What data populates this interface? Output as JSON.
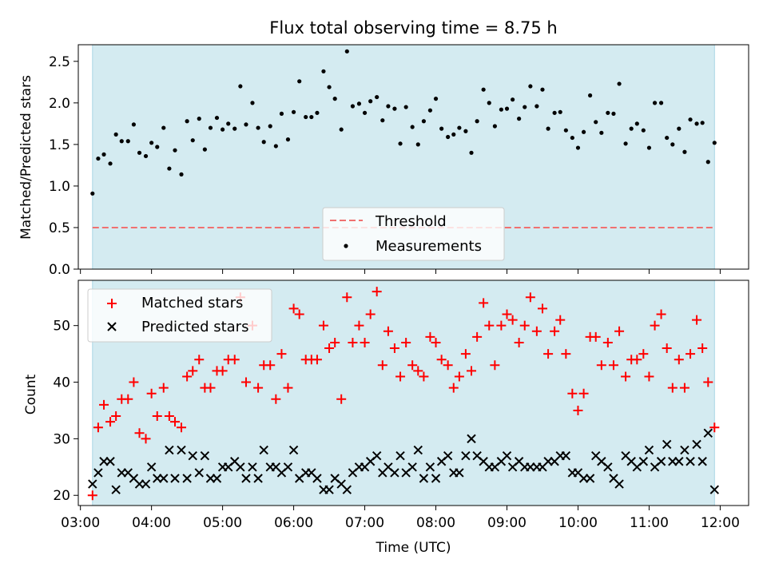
{
  "chart_data": [
    {
      "type": "scatter",
      "title": "Flux total observing time = 8.75 h",
      "ylabel": "Matched/Predicted stars",
      "xlabel": "",
      "ylim": [
        0,
        2.7
      ],
      "yticks": [
        0.0,
        0.5,
        1.0,
        1.5,
        2.0,
        2.5
      ],
      "ytick_labels": [
        "0.0",
        "0.5",
        "1.0",
        "1.5",
        "2.0",
        "2.5"
      ],
      "xlim": [
        2.97,
        12.4
      ],
      "shaded_range": [
        3.17,
        11.92
      ],
      "shade_color": "#d4ebf1",
      "grid": false,
      "legend_position": "bottom-center",
      "threshold": {
        "name": "Threshold",
        "value": 0.5,
        "x_range": [
          3.17,
          11.92
        ],
        "color": "#f07070"
      },
      "series": [
        {
          "name": "Measurements",
          "color": "#000000",
          "x": [
            3.17,
            3.25,
            3.33,
            3.42,
            3.5,
            3.58,
            3.67,
            3.75,
            3.83,
            3.92,
            4.0,
            4.08,
            4.17,
            4.25,
            4.33,
            4.42,
            4.5,
            4.58,
            4.67,
            4.75,
            4.83,
            4.92,
            5.0,
            5.08,
            5.17,
            5.25,
            5.33,
            5.42,
            5.5,
            5.58,
            5.67,
            5.75,
            5.83,
            5.92,
            6.0,
            6.08,
            6.17,
            6.25,
            6.33,
            6.42,
            6.5,
            6.58,
            6.67,
            6.75,
            6.83,
            6.92,
            7.0,
            7.08,
            7.17,
            7.25,
            7.33,
            7.42,
            7.5,
            7.58,
            7.67,
            7.75,
            7.83,
            7.92,
            8.0,
            8.08,
            8.17,
            8.25,
            8.33,
            8.42,
            8.5,
            8.58,
            8.67,
            8.75,
            8.83,
            8.92,
            9.0,
            9.08,
            9.17,
            9.25,
            9.33,
            9.42,
            9.5,
            9.58,
            9.67,
            9.75,
            9.83,
            9.92,
            10.0,
            10.08,
            10.17,
            10.25,
            10.33,
            10.42,
            10.5,
            10.58,
            10.67,
            10.75,
            10.83,
            10.92,
            11.0,
            11.08,
            11.17,
            11.25,
            11.33,
            11.42,
            11.5,
            11.58,
            11.67,
            11.75,
            11.83,
            11.92
          ],
          "y": [
            0.91,
            1.33,
            1.38,
            1.27,
            1.62,
            1.54,
            1.54,
            1.74,
            1.4,
            1.36,
            1.52,
            1.47,
            1.7,
            1.21,
            1.43,
            1.14,
            1.78,
            1.55,
            1.81,
            1.44,
            1.7,
            1.82,
            1.68,
            1.75,
            1.69,
            2.2,
            1.74,
            2.0,
            1.7,
            1.53,
            1.72,
            1.48,
            1.87,
            1.56,
            1.89,
            2.26,
            1.83,
            1.83,
            1.88,
            2.38,
            2.19,
            2.05,
            1.68,
            2.62,
            1.96,
            1.99,
            1.88,
            2.02,
            2.07,
            1.79,
            1.96,
            1.93,
            1.51,
            1.95,
            1.71,
            1.5,
            1.78,
            1.91,
            2.05,
            1.69,
            1.59,
            1.62,
            1.7,
            1.66,
            1.4,
            1.78,
            2.16,
            2.0,
            1.72,
            1.92,
            1.93,
            2.04,
            1.81,
            1.95,
            2.2,
            1.96,
            2.16,
            1.69,
            1.88,
            1.89,
            1.67,
            1.58,
            1.46,
            1.65,
            2.09,
            1.77,
            1.64,
            1.88,
            1.87,
            2.23,
            1.51,
            1.69,
            1.75,
            1.67,
            1.46,
            2.0,
            2.0,
            1.58,
            1.5,
            1.69,
            1.41,
            1.8,
            1.75,
            1.76,
            1.29,
            1.52
          ]
        }
      ]
    },
    {
      "type": "scatter",
      "title": "",
      "ylabel": "Count",
      "xlabel": "Time (UTC)",
      "ylim": [
        18.2,
        58.0
      ],
      "yticks": [
        20,
        30,
        40,
        50
      ],
      "ytick_labels": [
        "20",
        "30",
        "40",
        "50"
      ],
      "xlim": [
        2.97,
        12.4
      ],
      "xticks": [
        3,
        4,
        5,
        6,
        7,
        8,
        9,
        10,
        11,
        12
      ],
      "xtick_labels": [
        "03:00",
        "04:00",
        "05:00",
        "06:00",
        "07:00",
        "08:00",
        "09:00",
        "10:00",
        "11:00",
        "12:00"
      ],
      "shaded_range": [
        3.17,
        11.92
      ],
      "shade_color": "#d4ebf1",
      "grid": false,
      "legend_position": "top-left",
      "series": [
        {
          "name": "Matched stars",
          "marker": "+",
          "color": "#ff0000",
          "x": [
            3.17,
            3.25,
            3.33,
            3.42,
            3.5,
            3.58,
            3.67,
            3.75,
            3.83,
            3.92,
            4.0,
            4.08,
            4.17,
            4.25,
            4.33,
            4.42,
            4.5,
            4.58,
            4.67,
            4.75,
            4.83,
            4.92,
            5.0,
            5.08,
            5.17,
            5.25,
            5.33,
            5.42,
            5.5,
            5.58,
            5.67,
            5.75,
            5.83,
            5.92,
            6.0,
            6.08,
            6.17,
            6.25,
            6.33,
            6.42,
            6.5,
            6.58,
            6.67,
            6.75,
            6.83,
            6.92,
            7.0,
            7.08,
            7.17,
            7.25,
            7.33,
            7.42,
            7.5,
            7.58,
            7.67,
            7.75,
            7.83,
            7.92,
            8.0,
            8.08,
            8.17,
            8.25,
            8.33,
            8.42,
            8.5,
            8.58,
            8.67,
            8.75,
            8.83,
            8.92,
            9.0,
            9.08,
            9.17,
            9.25,
            9.33,
            9.42,
            9.5,
            9.58,
            9.67,
            9.75,
            9.83,
            9.92,
            10.0,
            10.08,
            10.17,
            10.25,
            10.33,
            10.42,
            10.5,
            10.58,
            10.67,
            10.75,
            10.83,
            10.92,
            11.0,
            11.08,
            11.17,
            11.25,
            11.33,
            11.42,
            11.5,
            11.58,
            11.67,
            11.75,
            11.83,
            11.92
          ],
          "y": [
            20,
            32,
            36,
            33,
            34,
            37,
            37,
            40,
            31,
            30,
            38,
            34,
            39,
            34,
            33,
            32,
            41,
            42,
            44,
            39,
            39,
            42,
            42,
            44,
            44,
            55,
            40,
            50,
            39,
            43,
            43,
            37,
            45,
            39,
            53,
            52,
            44,
            44,
            44,
            50,
            46,
            47,
            37,
            55,
            47,
            50,
            47,
            52,
            56,
            43,
            49,
            46,
            41,
            47,
            43,
            42,
            41,
            48,
            47,
            44,
            43,
            39,
            41,
            45,
            42,
            48,
            54,
            50,
            43,
            50,
            52,
            51,
            47,
            50,
            55,
            49,
            53,
            45,
            49,
            51,
            45,
            38,
            35,
            38,
            48,
            48,
            43,
            47,
            43,
            49,
            41,
            44,
            44,
            45,
            41,
            50,
            52,
            46,
            39,
            44,
            39,
            45,
            51,
            46,
            40,
            32
          ]
        },
        {
          "name": "Predicted stars",
          "marker": "x",
          "color": "#000000",
          "x": [
            3.17,
            3.25,
            3.33,
            3.42,
            3.5,
            3.58,
            3.67,
            3.75,
            3.83,
            3.92,
            4.0,
            4.08,
            4.17,
            4.25,
            4.33,
            4.42,
            4.5,
            4.58,
            4.67,
            4.75,
            4.83,
            4.92,
            5.0,
            5.08,
            5.17,
            5.25,
            5.33,
            5.42,
            5.5,
            5.58,
            5.67,
            5.75,
            5.83,
            5.92,
            6.0,
            6.08,
            6.17,
            6.25,
            6.33,
            6.42,
            6.5,
            6.58,
            6.67,
            6.75,
            6.83,
            6.92,
            7.0,
            7.08,
            7.17,
            7.25,
            7.33,
            7.42,
            7.5,
            7.58,
            7.67,
            7.75,
            7.83,
            7.92,
            8.0,
            8.08,
            8.17,
            8.25,
            8.33,
            8.42,
            8.5,
            8.58,
            8.67,
            8.75,
            8.83,
            8.92,
            9.0,
            9.08,
            9.17,
            9.25,
            9.33,
            9.42,
            9.5,
            9.58,
            9.67,
            9.75,
            9.83,
            9.92,
            10.0,
            10.08,
            10.17,
            10.25,
            10.33,
            10.42,
            10.5,
            10.58,
            10.67,
            10.75,
            10.83,
            10.92,
            11.0,
            11.08,
            11.17,
            11.25,
            11.33,
            11.42,
            11.5,
            11.58,
            11.67,
            11.75,
            11.83,
            11.92
          ],
          "y": [
            22,
            24,
            26,
            26,
            21,
            24,
            24,
            23,
            22,
            22,
            25,
            23,
            23,
            28,
            23,
            28,
            23,
            27,
            24,
            27,
            23,
            23,
            25,
            25,
            26,
            25,
            23,
            25,
            23,
            28,
            25,
            25,
            24,
            25,
            28,
            23,
            24,
            24,
            23,
            21,
            21,
            23,
            22,
            21,
            24,
            25,
            25,
            26,
            27,
            24,
            25,
            24,
            27,
            24,
            25,
            28,
            23,
            25,
            23,
            26,
            27,
            24,
            24,
            27,
            30,
            27,
            26,
            25,
            25,
            26,
            27,
            25,
            26,
            25,
            25,
            25,
            25,
            26,
            26,
            27,
            27,
            24,
            24,
            23,
            23,
            27,
            26,
            25,
            23,
            22,
            27,
            26,
            25,
            26,
            28,
            25,
            26,
            29,
            26,
            26,
            28,
            26,
            29,
            26,
            31,
            21
          ]
        }
      ]
    }
  ]
}
